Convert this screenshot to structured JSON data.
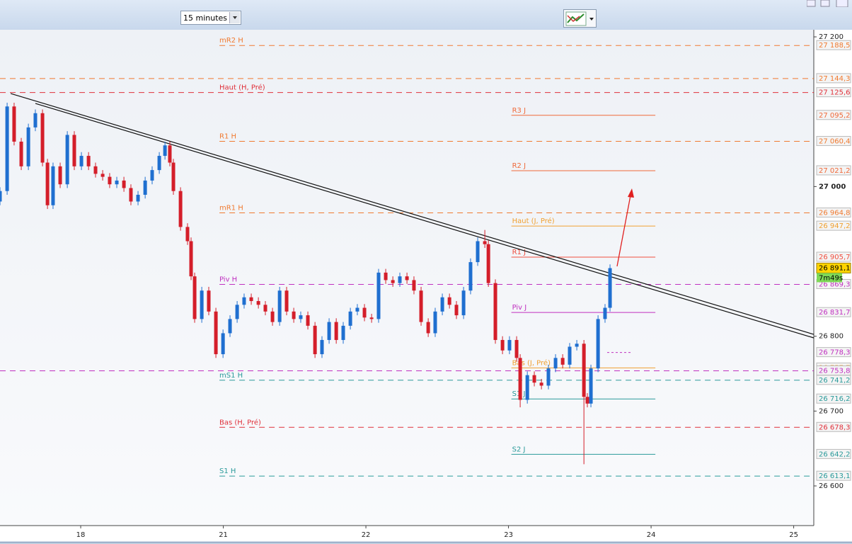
{
  "toolbar": {
    "timeframe": "15 minutes"
  },
  "chart_data": {
    "type": "candlestick",
    "x": [
      -0.566,
      -0.516,
      -0.467,
      -0.417,
      -0.367,
      -0.318,
      -0.268,
      -0.233,
      -0.194,
      -0.144,
      -0.094,
      -0.045,
      0.005,
      0.055,
      0.104,
      0.154,
      0.203,
      0.253,
      0.303,
      0.352,
      0.402,
      0.452,
      0.501,
      0.551,
      0.591,
      0.625,
      0.65,
      0.7,
      0.749,
      0.774,
      0.799,
      0.849,
      0.898,
      0.948,
      0.998,
      1.047,
      1.097,
      1.146,
      1.196,
      1.246,
      1.295,
      1.345,
      1.395,
      1.444,
      1.494,
      1.543,
      1.593,
      1.643,
      1.692,
      1.742,
      1.792,
      1.841,
      1.891,
      1.94,
      1.99,
      2.04,
      2.089,
      2.139,
      2.189,
      2.238,
      2.288,
      2.337,
      2.387,
      2.437,
      2.486,
      2.536,
      2.586,
      2.635,
      2.685,
      2.734,
      2.784,
      2.834,
      2.859,
      2.908,
      2.958,
      3.007,
      3.057,
      3.082,
      3.132,
      3.181,
      3.231,
      3.28,
      3.33,
      3.38,
      3.429,
      3.479,
      3.529,
      3.553,
      3.578,
      3.628,
      3.677,
      3.712
    ],
    "open": [
      26980,
      26994,
      27107,
      27060,
      27027,
      27079,
      27098,
      27032,
      26975,
      27027,
      27003,
      27069,
      27027,
      27041,
      27027,
      27017,
      27013,
      27003,
      27008,
      26998,
      26980,
      26989,
      27008,
      27022,
      27041,
      27055,
      27032,
      26994,
      26946,
      26927,
      26880,
      26823,
      26861,
      26833,
      26776,
      26804,
      26823,
      26842,
      26852,
      26847,
      26842,
      26833,
      26819,
      26861,
      26833,
      26823,
      26828,
      26814,
      26776,
      26795,
      26819,
      26795,
      26814,
      26833,
      26838,
      26825,
      26823,
      26885,
      26875,
      26871,
      26880,
      26875,
      26861,
      26819,
      26804,
      26833,
      26852,
      26842,
      26828,
      26861,
      26899,
      26927,
      26923,
      26871,
      26795,
      26781,
      26795,
      26771,
      26715,
      26748,
      26738,
      26734,
      26757,
      26771,
      26762,
      26786,
      26790,
      26719,
      26710,
      26757,
      26823,
      26838
    ],
    "high": [
      26999,
      27112,
      27112,
      27065,
      27084,
      27103,
      27103,
      27037,
      27032,
      27032,
      27074,
      27074,
      27046,
      27046,
      27032,
      27022,
      27018,
      27013,
      27013,
      27003,
      26994,
      27013,
      27027,
      27046,
      27060,
      27060,
      27037,
      26999,
      26951,
      26932,
      26885,
      26866,
      26866,
      26838,
      26809,
      26828,
      26847,
      26857,
      26857,
      26852,
      26847,
      26838,
      26866,
      26866,
      26838,
      26833,
      26833,
      26819,
      26800,
      26824,
      26824,
      26819,
      26838,
      26843,
      26843,
      26830,
      26890,
      26890,
      26880,
      26885,
      26885,
      26880,
      26866,
      26824,
      26838,
      26857,
      26857,
      26847,
      26866,
      26904,
      26932,
      26942,
      26928,
      26876,
      26800,
      26800,
      26800,
      26776,
      26753,
      26753,
      26743,
      26762,
      26776,
      26776,
      26791,
      26795,
      26795,
      26724,
      26762,
      26828,
      26843,
      26896
    ],
    "low": [
      26975,
      26989,
      27055,
      27022,
      27022,
      27074,
      27027,
      26970,
      26970,
      26998,
      26998,
      27022,
      27022,
      27022,
      27012,
      27008,
      26998,
      26998,
      26993,
      26975,
      26975,
      26984,
      27003,
      27017,
      27036,
      27027,
      26989,
      26941,
      26922,
      26875,
      26818,
      26818,
      26828,
      26771,
      26771,
      26799,
      26818,
      26837,
      26842,
      26837,
      26828,
      26814,
      26814,
      26828,
      26818,
      26818,
      26809,
      26771,
      26771,
      26790,
      26790,
      26790,
      26809,
      26828,
      26820,
      26818,
      26818,
      26870,
      26866,
      26866,
      26870,
      26856,
      26814,
      26799,
      26799,
      26828,
      26837,
      26823,
      26823,
      26856,
      26894,
      26918,
      26866,
      26790,
      26776,
      26776,
      26766,
      26705,
      26710,
      26733,
      26729,
      26729,
      26752,
      26757,
      26757,
      26781,
      26629,
      26705,
      26705,
      26752,
      26818,
      26833
    ],
    "close": [
      26994,
      27107,
      27060,
      27027,
      27079,
      27098,
      27032,
      26975,
      27027,
      27003,
      27069,
      27027,
      27041,
      27027,
      27017,
      27013,
      27003,
      27008,
      26998,
      26980,
      26989,
      27008,
      27022,
      27041,
      27055,
      27032,
      26994,
      26946,
      26927,
      26880,
      26823,
      26861,
      26833,
      26776,
      26804,
      26823,
      26842,
      26852,
      26847,
      26842,
      26833,
      26819,
      26861,
      26833,
      26823,
      26828,
      26814,
      26776,
      26795,
      26819,
      26795,
      26814,
      26833,
      26838,
      26825,
      26823,
      26885,
      26875,
      26871,
      26880,
      26875,
      26861,
      26819,
      26804,
      26833,
      26852,
      26842,
      26828,
      26861,
      26899,
      26927,
      26923,
      26871,
      26795,
      26781,
      26795,
      26771,
      26715,
      26748,
      26738,
      26734,
      26757,
      26771,
      26762,
      26786,
      26790,
      26719,
      26710,
      26757,
      26823,
      26838,
      26891
    ],
    "up_color": "#1f6fd0",
    "down_color": "#d41e2a",
    "xlim": [
      -0.566,
      5.141
    ],
    "xticks": [
      {
        "value": 0,
        "label": "18"
      },
      {
        "value": 1,
        "label": "21"
      },
      {
        "value": 2,
        "label": "22"
      },
      {
        "value": 3,
        "label": "23"
      },
      {
        "value": 4,
        "label": "24"
      },
      {
        "value": 5,
        "label": "25"
      }
    ],
    "ylim": [
      26547,
      27209.5
    ],
    "yticks": [
      {
        "value": 27200,
        "label": "27 200"
      },
      {
        "value": 27000,
        "label": "27 000"
      },
      {
        "value": 26800,
        "label": "26 800"
      },
      {
        "value": 26700,
        "label": "26 700"
      },
      {
        "value": 26600,
        "label": "26 600"
      }
    ],
    "levels": [
      {
        "name": "mR2 H",
        "value": 27188.5,
        "value_label": "27 188,5",
        "color": "#f07a30",
        "style": "dashed",
        "start": 0.973,
        "end": 5.141
      },
      {
        "value": 27144.3,
        "value_label": "27 144,3",
        "color": "#f07a30",
        "style": "dashed",
        "start": -0.566,
        "end": 5.141
      },
      {
        "name": "Haut (H, Pré)",
        "value": 27125.6,
        "value_label": "27 125,6",
        "color": "#e0303a",
        "style": "dashed",
        "start": -0.566,
        "end": 5.141
      },
      {
        "name": "R3 J",
        "value": 27095.2,
        "value_label": "27 095,2",
        "color": "#f06a3a",
        "style": "solid",
        "start": 3.02,
        "end": 4.03
      },
      {
        "name": "R1 H",
        "value": 27060.4,
        "value_label": "27 060,4",
        "color": "#f07a30",
        "style": "dashed",
        "start": 0.973,
        "end": 5.141
      },
      {
        "name": "R2 J",
        "value": 27021.2,
        "value_label": "27 021,2",
        "color": "#f06a3a",
        "style": "solid",
        "start": 3.02,
        "end": 4.03
      },
      {
        "name": "mR1 H",
        "value": 26964.8,
        "value_label": "26 964,8",
        "color": "#f07a30",
        "style": "dashed",
        "start": 0.973,
        "end": 5.141
      },
      {
        "name": "Haut (J, Pré)",
        "value": 26947.2,
        "value_label": "26 947,2",
        "color": "#f0a030",
        "style": "solid",
        "start": 3.02,
        "end": 4.03
      },
      {
        "name": "R1 J",
        "value": 26905.7,
        "value_label": "26 905,7",
        "color": "#f05040",
        "style": "solid",
        "start": 3.02,
        "end": 4.03
      },
      {
        "name": "Piv H",
        "value": 26869.3,
        "value_label": "26 869,3",
        "color": "#c030c0",
        "style": "dashed",
        "start": 0.973,
        "end": 5.141
      },
      {
        "name": "Piv J",
        "value": 26831.7,
        "value_label": "26 831,7",
        "color": "#c030c0",
        "style": "solid",
        "start": 3.02,
        "end": 4.03
      },
      {
        "value": 26778.3,
        "value_label": "26 778,3",
        "color": "#c030c0",
        "style": "dotted",
        "start": 3.692,
        "end": 3.866
      },
      {
        "name": "Bas (J, Pré)",
        "value": 26757.7,
        "value_label": "26 757,7",
        "color": "#f0a030",
        "style": "solid",
        "start": 3.02,
        "end": 4.03
      },
      {
        "value": 26753.8,
        "value_label": "26 753,8",
        "color": "#c030c0",
        "style": "dashed",
        "start": -0.566,
        "end": 5.141
      },
      {
        "name": "mS1 H",
        "value": 26741.2,
        "value_label": "26 741,2",
        "color": "#2a9a9a",
        "style": "dashed",
        "start": 0.973,
        "end": 5.141
      },
      {
        "name": "S1 J",
        "value": 26716.2,
        "value_label": "26 716,2",
        "color": "#2a9a9a",
        "style": "solid",
        "start": 3.02,
        "end": 4.03
      },
      {
        "name": "Bas (H, Pré)",
        "value": 26678.3,
        "value_label": "26 678,3",
        "color": "#e0303a",
        "style": "dashed",
        "start": 0.973,
        "end": 5.141
      },
      {
        "name": "S2 J",
        "value": 26642.2,
        "value_label": "26 642,2",
        "color": "#2a9a9a",
        "style": "solid",
        "start": 3.02,
        "end": 4.03
      },
      {
        "name": "S1 H",
        "value": 26613.1,
        "value_label": "26 613,1",
        "color": "#2a9a9a",
        "style": "dashed",
        "start": 0.973,
        "end": 5.141
      }
    ],
    "trendlines": [
      {
        "x": [
          -0.491,
          5.141
        ],
        "y": [
          27124.3,
          26802.5
        ]
      },
      {
        "x": [
          -0.318,
          5.141
        ],
        "y": [
          27111,
          26797.8
        ]
      }
    ],
    "last_price": {
      "value": 26891.1,
      "label": "26 891,1"
    },
    "countdown": "7m49s"
  }
}
